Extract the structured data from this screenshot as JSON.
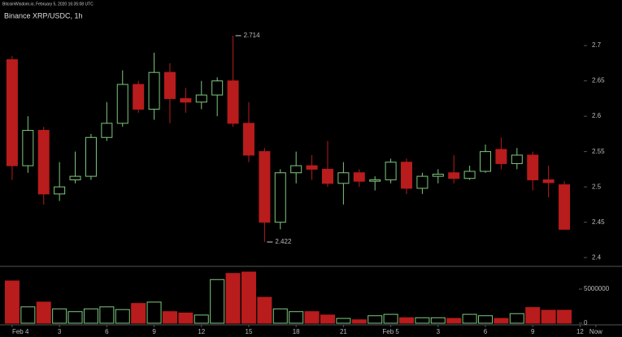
{
  "header": {
    "source": "BitcoinWisdom.io, February 5, 2020 16:35:08 UTC"
  },
  "chart_data": {
    "type": "candlestick",
    "title": "Binance XRP/USDC, 1h",
    "open": [
      2.68,
      2.53,
      2.58,
      2.49,
      2.51,
      2.515,
      2.57,
      2.59,
      2.645,
      2.61,
      2.662,
      2.625,
      2.62,
      2.63,
      2.65,
      2.59,
      2.55,
      2.45,
      2.52,
      2.53,
      2.525,
      2.505,
      2.52,
      2.508,
      2.51,
      2.535,
      2.498,
      2.515,
      2.52,
      2.512,
      2.522,
      2.553,
      2.533,
      2.545,
      2.51,
      2.503
    ],
    "high": [
      2.685,
      2.6,
      2.585,
      2.535,
      2.55,
      2.575,
      2.62,
      2.665,
      2.65,
      2.69,
      2.675,
      2.64,
      2.65,
      2.655,
      2.714,
      2.62,
      2.555,
      2.525,
      2.55,
      2.545,
      2.565,
      2.535,
      2.525,
      2.515,
      2.54,
      2.54,
      2.52,
      2.525,
      2.545,
      2.53,
      2.56,
      2.57,
      2.555,
      2.55,
      2.53,
      2.508
    ],
    "low": [
      2.51,
      2.52,
      2.475,
      2.48,
      2.505,
      2.51,
      2.565,
      2.585,
      2.605,
      2.595,
      2.59,
      2.605,
      2.61,
      2.6,
      2.585,
      2.535,
      2.422,
      2.44,
      2.505,
      2.51,
      2.5,
      2.475,
      2.5,
      2.495,
      2.505,
      2.49,
      2.49,
      2.505,
      2.505,
      2.51,
      2.52,
      2.525,
      2.525,
      2.495,
      2.485,
      2.44
    ],
    "close": [
      2.53,
      2.58,
      2.49,
      2.5,
      2.515,
      2.57,
      2.59,
      2.645,
      2.61,
      2.662,
      2.625,
      2.62,
      2.63,
      2.65,
      2.59,
      2.545,
      2.45,
      2.52,
      2.53,
      2.525,
      2.505,
      2.52,
      2.508,
      2.51,
      2.535,
      2.498,
      2.515,
      2.518,
      2.512,
      2.522,
      2.55,
      2.533,
      2.545,
      2.51,
      2.506,
      2.44
    ],
    "volume": [
      6200000,
      2400000,
      3100000,
      2100000,
      1700000,
      2100000,
      2400000,
      2000000,
      2900000,
      3100000,
      1700000,
      1500000,
      1200000,
      6400000,
      7300000,
      7500000,
      3800000,
      2100000,
      1700000,
      1700000,
      1200000,
      700000,
      500000,
      1100000,
      1300000,
      800000,
      800000,
      800000,
      700000,
      1300000,
      1100000,
      700000,
      1400000,
      2300000,
      1900000,
      1900000
    ],
    "up_color": "#7ec87e",
    "down_color": "#b81c1c",
    "ylim": [
      2.391,
      2.753
    ],
    "yticks": [
      2.4,
      2.45,
      2.5,
      2.55,
      2.6,
      2.65,
      2.7
    ],
    "vol_ylim": [
      0,
      8100000
    ],
    "vol_yticks": [
      5000000,
      0
    ],
    "xlim": [
      -0.77,
      38.4
    ],
    "xticks": [
      {
        "value": 0,
        "label": "Feb 4"
      },
      3,
      6,
      9,
      12,
      15,
      18,
      21,
      {
        "value": 24,
        "label": "Feb 5"
      },
      {
        "value": 27,
        "label": "3"
      },
      {
        "value": 30,
        "label": "6"
      },
      {
        "value": 33,
        "label": "9"
      },
      {
        "value": 36,
        "label": "12"
      },
      {
        "value": 37,
        "label": "Now"
      }
    ],
    "high_marker": {
      "index": 14,
      "value": 2.714
    },
    "low_marker": {
      "index": 16,
      "value": 2.422
    }
  }
}
